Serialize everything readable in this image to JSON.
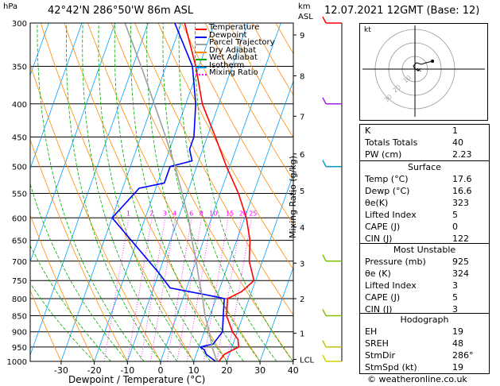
{
  "header": {
    "p_unit": "hPa",
    "location": "42°42'N  286°50'W  86m  ASL",
    "km_unit": "km",
    "asl_unit": "ASL",
    "datetime": "12.07.2021  12GMT  (Base: 12)"
  },
  "legend": [
    {
      "name": "Temperature",
      "color": "#ff0000"
    },
    {
      "name": "Dewpoint",
      "color": "#0000ff"
    },
    {
      "name": "Parcel Trajectory",
      "color": "#a0a0a0"
    },
    {
      "name": "Dry Adiabat",
      "color": "#ff8c00"
    },
    {
      "name": "Wet Adiabat",
      "color": "#00aa00"
    },
    {
      "name": "Isotherm",
      "color": "#00a0ff"
    },
    {
      "name": "Mixing Ratio",
      "color": "#ff00ff",
      "dotted": true
    }
  ],
  "chart_data": {
    "type": "line",
    "xlabel": "Dewpoint / Temperature (°C)",
    "ylabel_right": "Mixing Ratio (g/kg)",
    "x_ticks": [
      -30,
      -20,
      -10,
      0,
      10,
      20,
      30,
      40
    ],
    "pressure_levels": [
      300,
      350,
      400,
      450,
      500,
      550,
      600,
      650,
      700,
      750,
      800,
      850,
      900,
      950,
      1000
    ],
    "km_ticks": [
      {
        "label": "9",
        "p": 313
      },
      {
        "label": "8",
        "p": 362
      },
      {
        "label": "7",
        "p": 418
      },
      {
        "label": "6",
        "p": 478
      },
      {
        "label": "5",
        "p": 545
      },
      {
        "label": "4",
        "p": 620
      },
      {
        "label": "3",
        "p": 705
      },
      {
        "label": "2",
        "p": 800
      },
      {
        "label": "1",
        "p": 905
      },
      {
        "label": "LCL",
        "p": 993
      }
    ],
    "mixing_ratio_labels": [
      "1",
      "2",
      "3",
      "4",
      "6",
      "8",
      "10",
      "15",
      "20",
      "25"
    ],
    "series": [
      {
        "name": "Temperature",
        "color": "#ff0000",
        "points": [
          [
            1000,
            17.6
          ],
          [
            975,
            18.5
          ],
          [
            950,
            22.0
          ],
          [
            925,
            21.0
          ],
          [
            900,
            18.5
          ],
          [
            850,
            15.0
          ],
          [
            800,
            13.5
          ],
          [
            780,
            17.0
          ],
          [
            750,
            19.5
          ],
          [
            700,
            16.0
          ],
          [
            650,
            14.0
          ],
          [
            600,
            10.5
          ],
          [
            550,
            5.5
          ],
          [
            500,
            -1.0
          ],
          [
            450,
            -7.5
          ],
          [
            400,
            -15.0
          ],
          [
            350,
            -21.0
          ],
          [
            300,
            -29.0
          ]
        ]
      },
      {
        "name": "Dewpoint",
        "color": "#0000ff",
        "points": [
          [
            1000,
            16.6
          ],
          [
            975,
            13.0
          ],
          [
            960,
            12.0
          ],
          [
            950,
            10.5
          ],
          [
            940,
            14.0
          ],
          [
            900,
            15.5
          ],
          [
            850,
            14.0
          ],
          [
            800,
            12.5
          ],
          [
            795,
            10.0
          ],
          [
            770,
            -5.0
          ],
          [
            730,
            -10.0
          ],
          [
            600,
            -30.0
          ],
          [
            540,
            -25.0
          ],
          [
            530,
            -18.0
          ],
          [
            500,
            -18.0
          ],
          [
            490,
            -12.0
          ],
          [
            480,
            -13.0
          ],
          [
            470,
            -14.0
          ],
          [
            450,
            -14.0
          ],
          [
            400,
            -17.0
          ],
          [
            350,
            -22.0
          ],
          [
            300,
            -32.0
          ]
        ]
      },
      {
        "name": "Parcel Trajectory",
        "color": "#a0a0a0",
        "points": [
          [
            1000,
            17.6
          ],
          [
            993,
            16.6
          ],
          [
            950,
            14.0
          ],
          [
            900,
            11.5
          ],
          [
            850,
            8.5
          ],
          [
            800,
            6.0
          ],
          [
            750,
            3.0
          ],
          [
            700,
            0.0
          ],
          [
            650,
            -3.5
          ],
          [
            600,
            -7.0
          ],
          [
            550,
            -11.5
          ],
          [
            500,
            -16.5
          ],
          [
            450,
            -22.5
          ],
          [
            400,
            -29.5
          ],
          [
            350,
            -37.5
          ],
          [
            300,
            -47.0
          ]
        ]
      }
    ]
  },
  "table": {
    "rows1": [
      {
        "k": "K",
        "v": "1"
      },
      {
        "k": "Totals Totals",
        "v": "40"
      },
      {
        "k": "PW (cm)",
        "v": "2.23"
      }
    ],
    "surface": {
      "title": "Surface",
      "rows": [
        {
          "k": "Temp (°C)",
          "v": "17.6"
        },
        {
          "k": "Dewp (°C)",
          "v": "16.6"
        },
        {
          "k": "θe(K)",
          "v": "323"
        },
        {
          "k": "Lifted Index",
          "v": "5"
        },
        {
          "k": "CAPE (J)",
          "v": "0"
        },
        {
          "k": "CIN (J)",
          "v": "122"
        }
      ]
    },
    "unstable": {
      "title": "Most Unstable",
      "rows": [
        {
          "k": "Pressure (mb)",
          "v": "925"
        },
        {
          "k": "θe (K)",
          "v": "324"
        },
        {
          "k": "Lifted Index",
          "v": "3"
        },
        {
          "k": "CAPE (J)",
          "v": "5"
        },
        {
          "k": "CIN (J)",
          "v": "3"
        }
      ]
    },
    "hodograph": {
      "title": "Hodograph",
      "rows": [
        {
          "k": "EH",
          "v": "19"
        },
        {
          "k": "SREH",
          "v": "48"
        },
        {
          "k": "StmDir",
          "v": "286°"
        },
        {
          "k": "StmSpd (kt)",
          "v": "19"
        }
      ]
    }
  },
  "hodograph_plot": {
    "unit_label": "kt",
    "ring_labels": [
      "10",
      "20",
      "30"
    ]
  },
  "footer": "© weatheronline.co.uk"
}
